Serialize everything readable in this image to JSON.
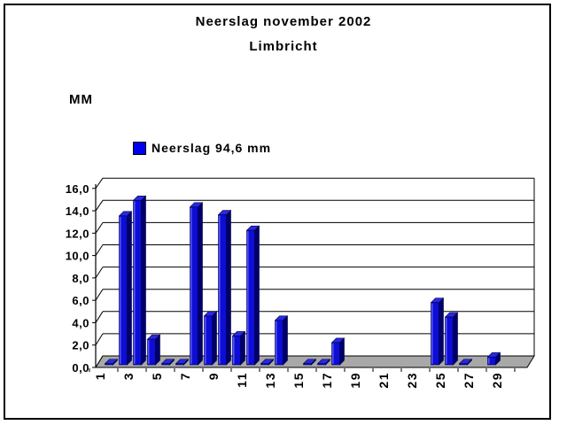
{
  "title": "Neerslag november 2002",
  "subtitle": "Limbricht",
  "colors": {
    "bar_front": "#0d0dd6",
    "bar_top": "#2929e0",
    "bar_side": "#00006b",
    "bar_highlight": "#5c5cff",
    "bar_outline": "#000040",
    "legend_swatch": "#0000f0",
    "floor": "#a8a8a8",
    "gridline": "#000000",
    "wall": "#ffffff",
    "frame": "#000000"
  },
  "chart_data": {
    "type": "bar",
    "style": "3d-column",
    "title": "Neerslag november 2002",
    "subtitle": "Limbricht",
    "ylabel": "MM",
    "legend": "Neerslag 94,6 mm",
    "legend_position": "upper-left",
    "grid": true,
    "ylim": [
      0,
      16
    ],
    "y_step": 2,
    "total_mm_shown_in_legend": "94,6",
    "categories": [
      1,
      2,
      3,
      4,
      5,
      6,
      7,
      8,
      9,
      10,
      11,
      12,
      13,
      14,
      15,
      16,
      17,
      18,
      19,
      20,
      21,
      22,
      23,
      24,
      25,
      26,
      27,
      28,
      29,
      30
    ],
    "values": [
      0.1,
      13.4,
      14.8,
      2.3,
      0.1,
      0.1,
      14.2,
      4.4,
      13.5,
      2.6,
      12.1,
      0.1,
      4.0,
      0,
      0.1,
      0.1,
      2.0,
      0,
      0,
      0,
      0,
      0,
      0,
      5.6,
      4.3,
      0.1,
      0,
      0.7,
      0,
      0
    ],
    "x_tick_labels": [
      "1",
      "3",
      "5",
      "7",
      "9",
      "11",
      "13",
      "15",
      "17",
      "19",
      "21",
      "23",
      "25",
      "27",
      "29"
    ],
    "y_tick_labels": [
      "0,0",
      "2,0",
      "4,0",
      "6,0",
      "8,0",
      "10,0",
      "12,0",
      "14,0",
      "16,0"
    ]
  }
}
